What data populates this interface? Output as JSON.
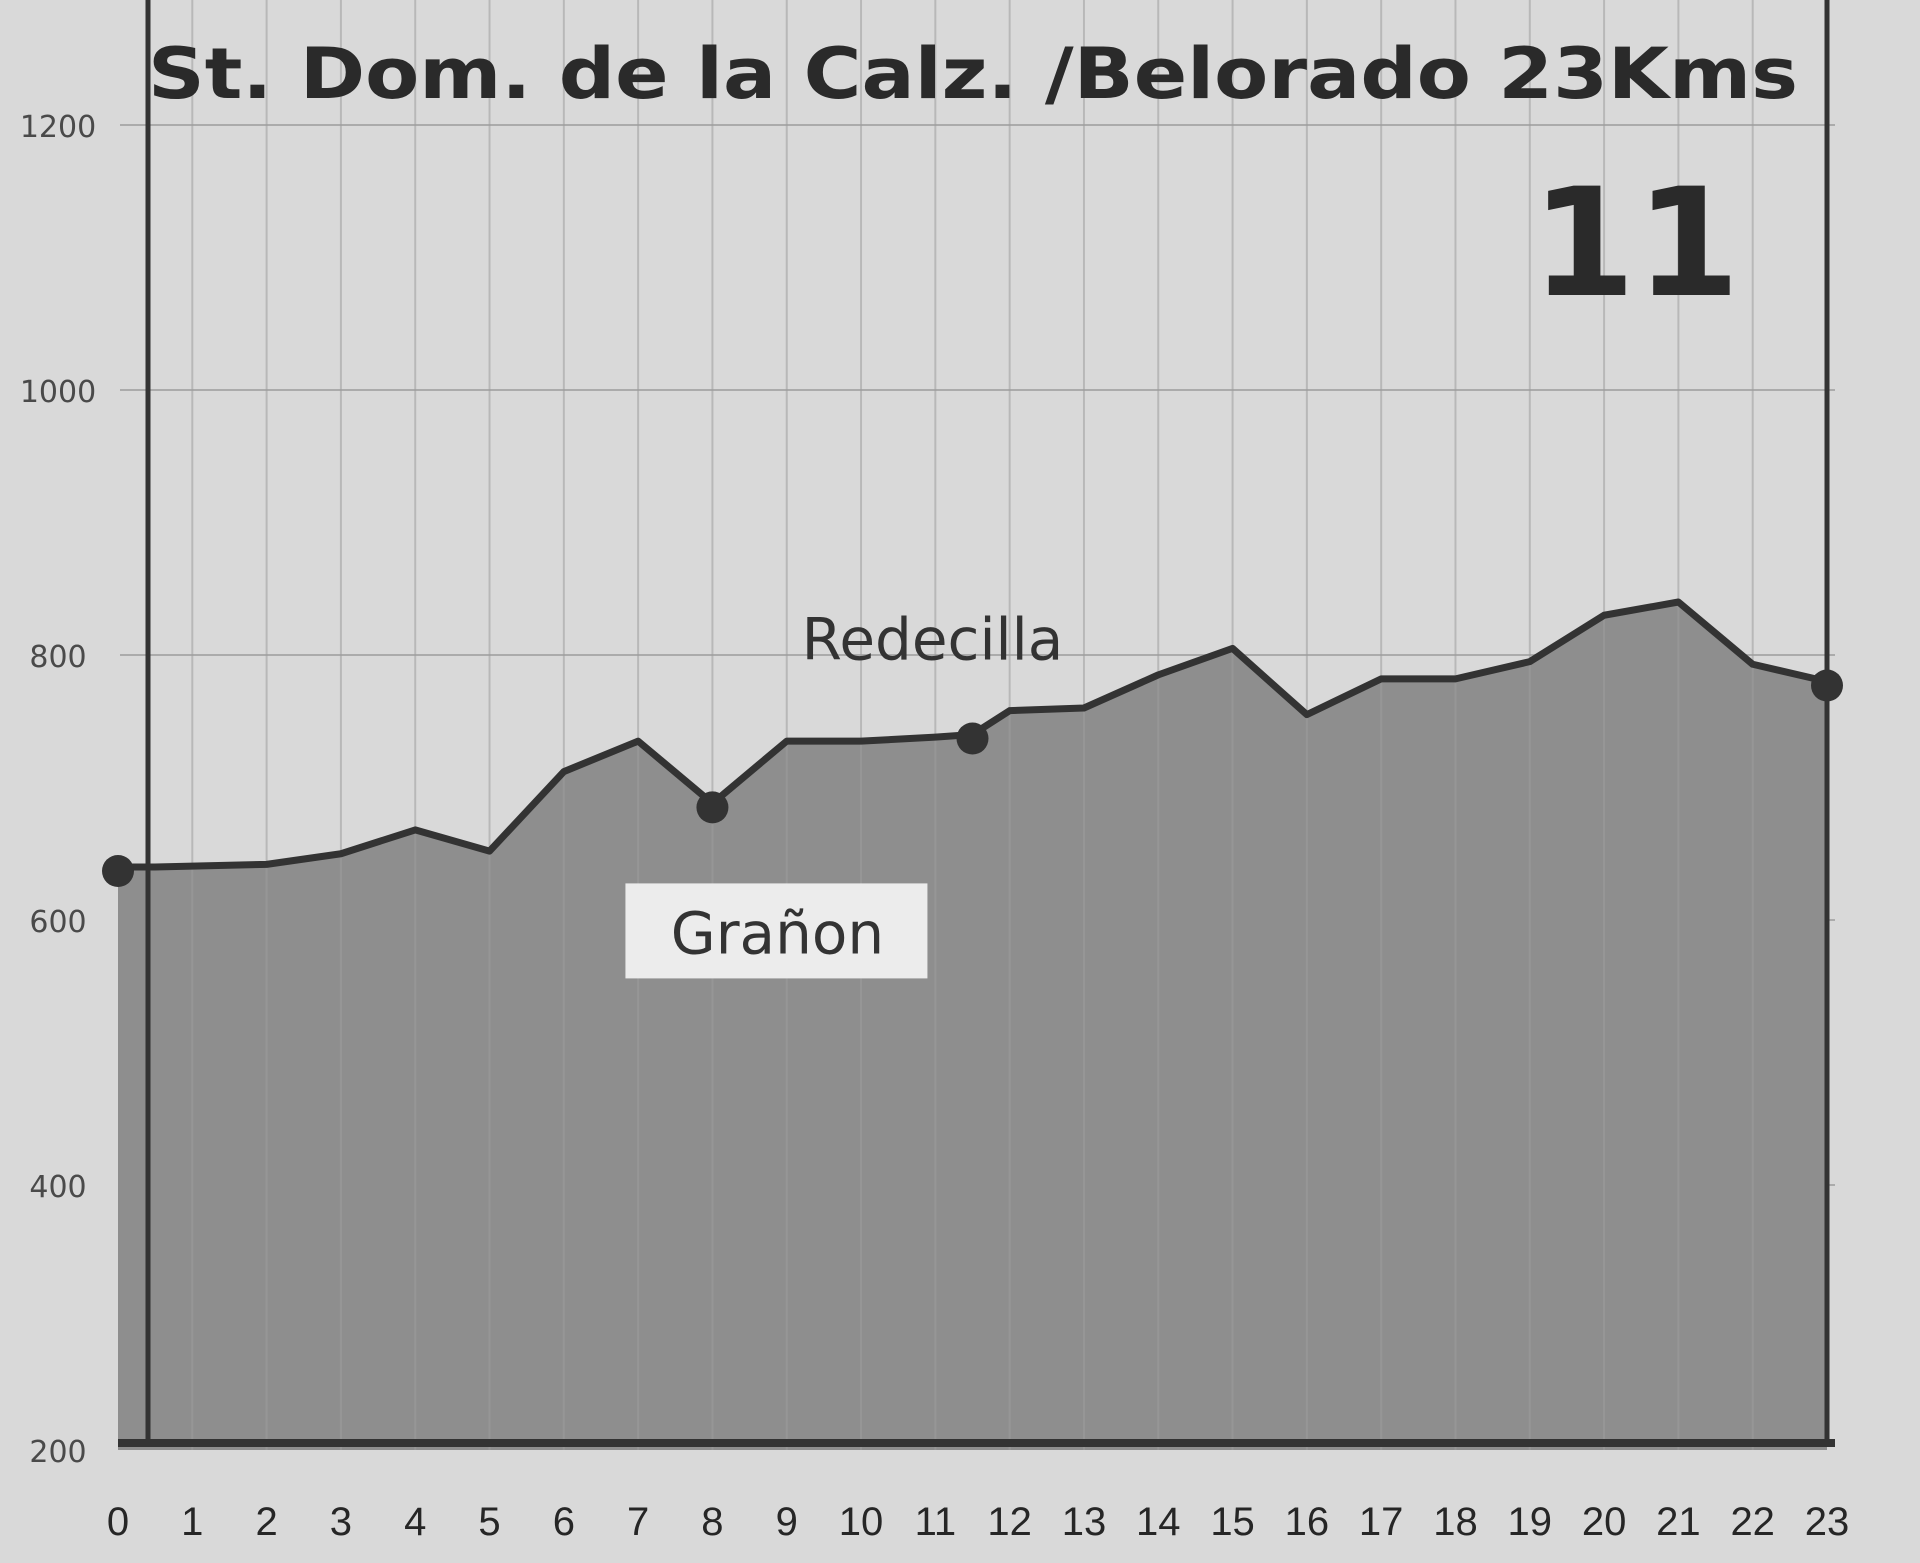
{
  "chart_data": {
    "type": "area",
    "title": "St. Dom. de la Calz. /Belorado 23Kms",
    "stage_number": "11",
    "xlabel": "",
    "ylabel": "",
    "xlim": [
      0,
      23
    ],
    "ylim": [
      200,
      1200
    ],
    "x_ticks": [
      "0",
      "1",
      "2",
      "3",
      "4",
      "5",
      "6",
      "7",
      "8",
      "9",
      "10",
      "11",
      "12",
      "13",
      "14",
      "15",
      "16",
      "17",
      "18",
      "19",
      "20",
      "21",
      "22",
      "23"
    ],
    "y_ticks": [
      "200",
      "400",
      "600",
      "800",
      "1000",
      "1200"
    ],
    "grid": "vertical and horizontal",
    "series": [
      {
        "x": [
          0,
          0.5,
          2,
          3,
          4,
          5,
          6,
          7,
          8,
          9,
          10,
          11,
          11.5,
          12,
          13,
          14,
          15,
          16,
          17,
          18,
          19,
          20,
          21,
          22,
          23
        ],
        "y": [
          640,
          640,
          642,
          650,
          668,
          652,
          712,
          735,
          688,
          735,
          735,
          738,
          740,
          758,
          760,
          785,
          805,
          755,
          782,
          782,
          795,
          830,
          840,
          793,
          780
        ]
      }
    ],
    "annotations": [
      {
        "label": "Grañon",
        "x": 8,
        "y": 688
      },
      {
        "label": "Redecilla",
        "x": 11.5,
        "y": 740
      }
    ],
    "markers": [
      {
        "x": 0,
        "y": 640
      },
      {
        "x": 8,
        "y": 688
      },
      {
        "x": 11.5,
        "y": 740
      },
      {
        "x": 23,
        "y": 780
      }
    ],
    "colors": {
      "background": "#d9d9d9",
      "fill": "#8e8e8e",
      "line": "#333333",
      "grid": "#ababab",
      "label_box": "#ececec"
    }
  }
}
